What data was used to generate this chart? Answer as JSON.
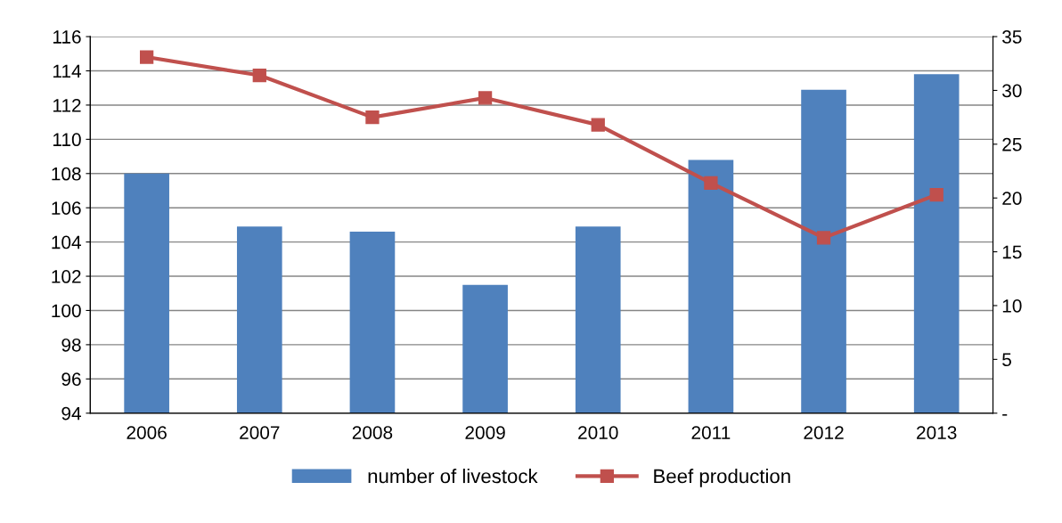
{
  "chart_data": {
    "type": "bar",
    "categories": [
      "2006",
      "2007",
      "2008",
      "2009",
      "2010",
      "2011",
      "2012",
      "2013"
    ],
    "series": [
      {
        "name": "number of livestock",
        "color": "#4f81bd",
        "values": [
          108.0,
          104.9,
          104.6,
          101.5,
          104.9,
          108.8,
          112.9,
          113.8
        ]
      },
      {
        "name": "Beef production",
        "type": "line",
        "axis": "y2",
        "color": "#c0504d",
        "marker": "square",
        "values": [
          33.1,
          31.4,
          27.5,
          29.3,
          26.8,
          21.4,
          16.3,
          20.3
        ]
      }
    ],
    "ylim": [
      94,
      116
    ],
    "yticks": [
      94,
      96,
      98,
      100,
      102,
      104,
      106,
      108,
      110,
      112,
      114,
      116
    ],
    "y2lim": [
      0,
      35
    ],
    "y2ticks": [
      {
        "value": 0,
        "label": "-"
      },
      5,
      10,
      15,
      20,
      25,
      30,
      35
    ],
    "grid": "y",
    "legend": "bottom"
  }
}
